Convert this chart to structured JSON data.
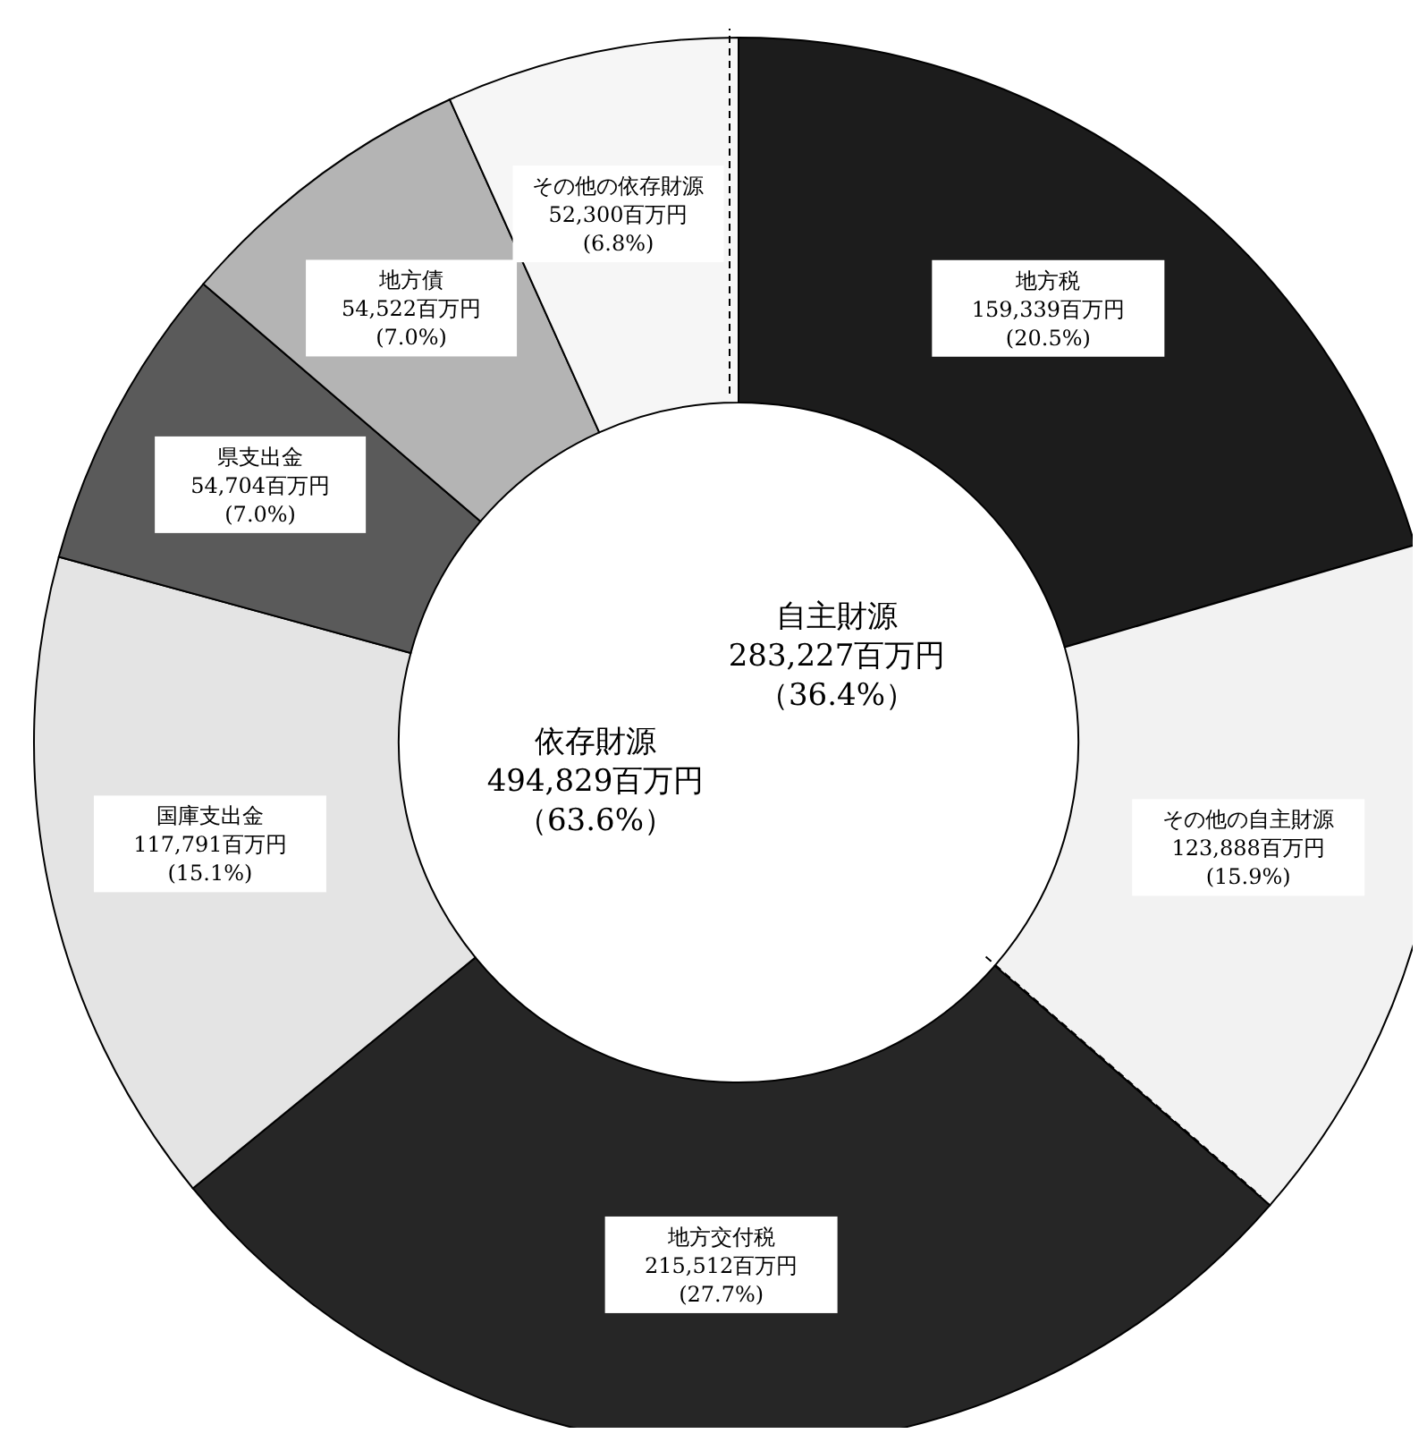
{
  "chart_data": {
    "type": "donut",
    "categories": [
      "地方税",
      "その他の自主財源",
      "地方交付税",
      "国庫支出金",
      "県支出金",
      "地方債",
      "その他の依存財源"
    ],
    "values": [
      159339,
      123888,
      215512,
      117791,
      54704,
      54522,
      52300
    ],
    "colors": [
      "#1c1c1c",
      "#f2f2f2",
      "#262626",
      "#e4e4e4",
      "#5a5a5a",
      "#b4b4b4",
      "#f6f6f6"
    ],
    "value_labels": [
      "159,339百万円\n(20.5%)",
      "123,888百万円\n(15.9%)",
      "215,512百万円\n(27.7%)",
      "117,791百万円\n(15.1%)",
      "54,704百万円\n(7.0%)",
      "54,522百万円\n(7.0%)",
      "52,300百万円\n(6.8%)"
    ],
    "annotations": [
      "自主財源",
      "283,227百万円",
      "（36.4%）",
      "依存財源",
      "494,829百万円",
      "（63.6%）"
    ]
  }
}
